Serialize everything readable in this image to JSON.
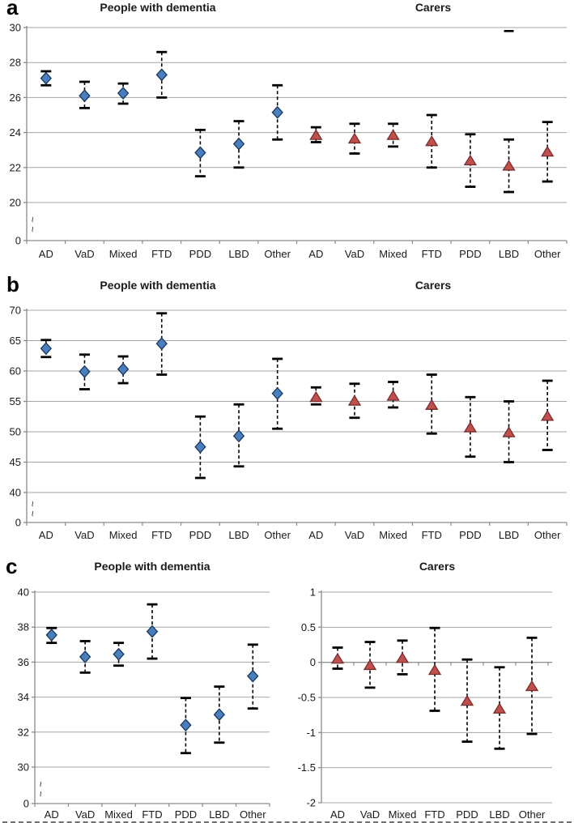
{
  "colors": {
    "pwd_fill": "#4a7ebc",
    "pwd_edge": "#17375d",
    "carer_fill": "#c0504d",
    "carer_edge": "#772e2b",
    "gridline": "#a6a6a6",
    "axis": "#8a8a8a",
    "error_bar": "#000000",
    "text": "#1a1a1a"
  },
  "panels": [
    {
      "letter": "a"
    },
    {
      "letter": "b"
    },
    {
      "letter": "c"
    }
  ],
  "chart_data": [
    {
      "panel": "a",
      "type": "scatter",
      "title_left": "People with dementia",
      "title_right": "Carers",
      "categories": [
        "AD",
        "VaD",
        "Mixed",
        "FTD",
        "PDD",
        "LBD",
        "Other",
        "AD",
        "VaD",
        "Mixed",
        "FTD",
        "PDD",
        "LBD",
        "Other"
      ],
      "ylim": [
        20,
        30
      ],
      "y_ticks": [
        {
          "v": 30,
          "label": "30"
        },
        {
          "v": 28,
          "label": "28"
        },
        {
          "v": 26,
          "label": "26"
        },
        {
          "v": 24,
          "label": "24"
        },
        {
          "v": 22,
          "label": "22"
        },
        {
          "v": 20,
          "label": "20"
        }
      ],
      "zero_label": "0",
      "axis_break": true,
      "grid": true,
      "stray_cap": {
        "slot": 12,
        "value": 29.8
      },
      "series": [
        {
          "name": "People with dementia",
          "marker": "diamond",
          "points": [
            {
              "cat": "AD",
              "y": 27.1,
              "lo": 26.7,
              "hi": 27.5
            },
            {
              "cat": "VaD",
              "y": 26.1,
              "lo": 25.4,
              "hi": 26.9
            },
            {
              "cat": "Mixed",
              "y": 26.25,
              "lo": 25.65,
              "hi": 26.8
            },
            {
              "cat": "FTD",
              "y": 27.3,
              "lo": 26.0,
              "hi": 28.6
            },
            {
              "cat": "PDD",
              "y": 22.85,
              "lo": 21.5,
              "hi": 24.15
            },
            {
              "cat": "LBD",
              "y": 23.35,
              "lo": 22.0,
              "hi": 24.65
            },
            {
              "cat": "Other",
              "y": 25.15,
              "lo": 23.6,
              "hi": 26.7
            }
          ]
        },
        {
          "name": "Carers",
          "marker": "triangle",
          "points": [
            {
              "cat": "AD",
              "y": 23.85,
              "lo": 23.45,
              "hi": 24.3
            },
            {
              "cat": "VaD",
              "y": 23.65,
              "lo": 22.8,
              "hi": 24.5
            },
            {
              "cat": "Mixed",
              "y": 23.85,
              "lo": 23.2,
              "hi": 24.5
            },
            {
              "cat": "FTD",
              "y": 23.5,
              "lo": 22.0,
              "hi": 25.0
            },
            {
              "cat": "PDD",
              "y": 22.4,
              "lo": 20.9,
              "hi": 23.9
            },
            {
              "cat": "LBD",
              "y": 22.1,
              "lo": 20.6,
              "hi": 23.6
            },
            {
              "cat": "Other",
              "y": 22.9,
              "lo": 21.2,
              "hi": 24.6
            }
          ]
        }
      ]
    },
    {
      "panel": "b",
      "type": "scatter",
      "title_left": "People with dementia",
      "title_right": "Carers",
      "categories": [
        "AD",
        "VaD",
        "Mixed",
        "FTD",
        "PDD",
        "LBD",
        "Other",
        "AD",
        "VaD",
        "Mixed",
        "FTD",
        "PDD",
        "LBD",
        "Other"
      ],
      "ylim": [
        40,
        70
      ],
      "y_ticks": [
        {
          "v": 70,
          "label": "70"
        },
        {
          "v": 65,
          "label": "65"
        },
        {
          "v": 60,
          "label": "60"
        },
        {
          "v": 55,
          "label": "55"
        },
        {
          "v": 50,
          "label": "50"
        },
        {
          "v": 45,
          "label": "45"
        },
        {
          "v": 40,
          "label": "40"
        }
      ],
      "zero_label": "0",
      "axis_break": true,
      "grid": true,
      "series": [
        {
          "name": "People with dementia",
          "marker": "diamond",
          "points": [
            {
              "cat": "AD",
              "y": 63.7,
              "lo": 62.3,
              "hi": 65.1
            },
            {
              "cat": "VaD",
              "y": 59.9,
              "lo": 57.0,
              "hi": 62.7
            },
            {
              "cat": "Mixed",
              "y": 60.3,
              "lo": 58.0,
              "hi": 62.4
            },
            {
              "cat": "FTD",
              "y": 64.5,
              "lo": 59.4,
              "hi": 69.5
            },
            {
              "cat": "PDD",
              "y": 47.5,
              "lo": 42.4,
              "hi": 52.5
            },
            {
              "cat": "LBD",
              "y": 49.3,
              "lo": 44.3,
              "hi": 54.5
            },
            {
              "cat": "Other",
              "y": 56.3,
              "lo": 50.5,
              "hi": 62.0
            }
          ]
        },
        {
          "name": "Carers",
          "marker": "triangle",
          "points": [
            {
              "cat": "AD",
              "y": 55.7,
              "lo": 54.5,
              "hi": 57.3
            },
            {
              "cat": "VaD",
              "y": 55.1,
              "lo": 52.3,
              "hi": 57.9
            },
            {
              "cat": "Mixed",
              "y": 55.9,
              "lo": 54.0,
              "hi": 58.2
            },
            {
              "cat": "FTD",
              "y": 54.4,
              "lo": 49.7,
              "hi": 59.4
            },
            {
              "cat": "PDD",
              "y": 50.7,
              "lo": 45.9,
              "hi": 55.7
            },
            {
              "cat": "LBD",
              "y": 49.9,
              "lo": 45.0,
              "hi": 55.0
            },
            {
              "cat": "Other",
              "y": 52.6,
              "lo": 47.0,
              "hi": 58.4
            }
          ]
        }
      ]
    },
    {
      "panel": "c",
      "type": "scatter",
      "title": "People with dementia",
      "categories": [
        "AD",
        "VaD",
        "Mixed",
        "FTD",
        "PDD",
        "LBD",
        "Other"
      ],
      "ylim": [
        30,
        40
      ],
      "y_ticks": [
        {
          "v": 40,
          "label": "40"
        },
        {
          "v": 38,
          "label": "38"
        },
        {
          "v": 36,
          "label": "36"
        },
        {
          "v": 34,
          "label": "34"
        },
        {
          "v": 32,
          "label": "32"
        },
        {
          "v": 30,
          "label": "30"
        }
      ],
      "zero_label": "0",
      "axis_break": true,
      "grid": true,
      "series": [
        {
          "name": "People with dementia",
          "marker": "diamond",
          "points": [
            {
              "cat": "AD",
              "y": 37.55,
              "lo": 37.1,
              "hi": 37.95
            },
            {
              "cat": "VaD",
              "y": 36.3,
              "lo": 35.4,
              "hi": 37.2
            },
            {
              "cat": "Mixed",
              "y": 36.45,
              "lo": 35.8,
              "hi": 37.1
            },
            {
              "cat": "FTD",
              "y": 37.75,
              "lo": 36.2,
              "hi": 39.3
            },
            {
              "cat": "PDD",
              "y": 32.4,
              "lo": 30.8,
              "hi": 33.95
            },
            {
              "cat": "LBD",
              "y": 33.0,
              "lo": 31.4,
              "hi": 34.6
            },
            {
              "cat": "Other",
              "y": 35.2,
              "lo": 33.35,
              "hi": 37.0
            }
          ]
        }
      ]
    },
    {
      "panel": "c",
      "type": "scatter",
      "title": "Carers",
      "categories": [
        "AD",
        "VaD",
        "Mixed",
        "FTD",
        "PDD",
        "LBD",
        "Other"
      ],
      "ylim": [
        -2,
        1
      ],
      "y_ticks": [
        {
          "v": 1,
          "label": "1"
        },
        {
          "v": 0.5,
          "label": "0.5"
        },
        {
          "v": 0,
          "label": "0"
        },
        {
          "v": -0.5,
          "label": "-0.5"
        },
        {
          "v": -1,
          "label": "-1"
        },
        {
          "v": -1.5,
          "label": "-1.5"
        },
        {
          "v": -2,
          "label": "-2"
        }
      ],
      "axis_break": false,
      "grid": true,
      "category_axis_at": 0,
      "series": [
        {
          "name": "Carers",
          "marker": "triangle",
          "points": [
            {
              "cat": "AD",
              "y": 0.05,
              "lo": -0.09,
              "hi": 0.21
            },
            {
              "cat": "VaD",
              "y": -0.04,
              "lo": -0.36,
              "hi": 0.29
            },
            {
              "cat": "Mixed",
              "y": 0.06,
              "lo": -0.17,
              "hi": 0.31
            },
            {
              "cat": "FTD",
              "y": -0.11,
              "lo": -0.69,
              "hi": 0.49
            },
            {
              "cat": "PDD",
              "y": -0.55,
              "lo": -1.13,
              "hi": 0.04
            },
            {
              "cat": "LBD",
              "y": -0.66,
              "lo": -1.23,
              "hi": -0.07
            },
            {
              "cat": "Other",
              "y": -0.34,
              "lo": -1.02,
              "hi": 0.35
            }
          ]
        }
      ]
    }
  ]
}
